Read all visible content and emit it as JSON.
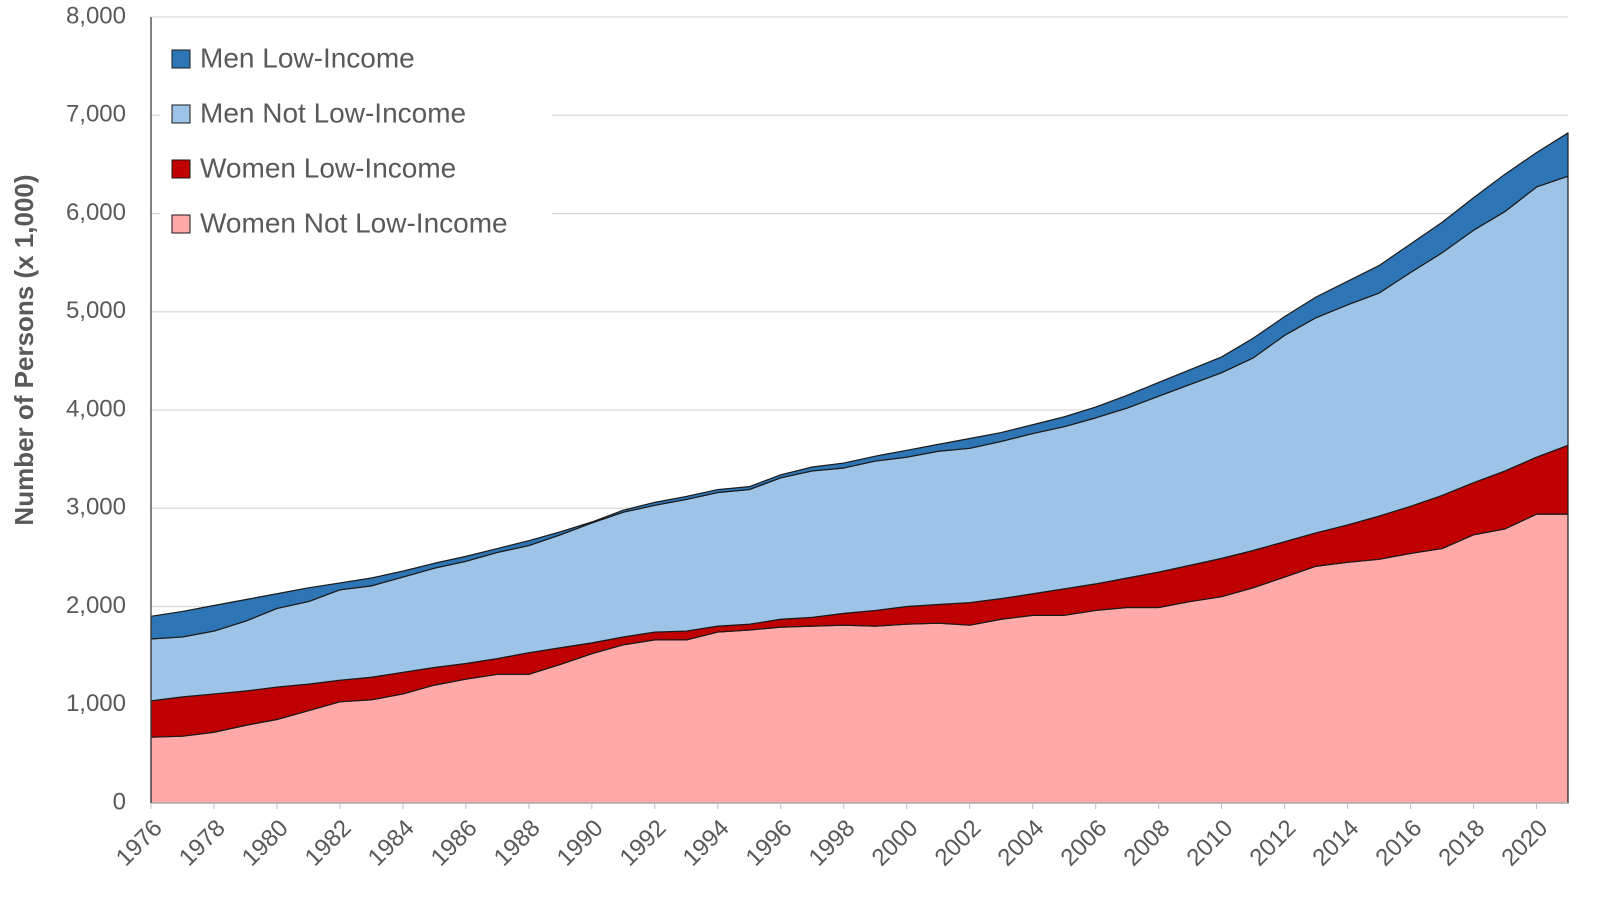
{
  "chart_data": {
    "type": "stacked_area",
    "y_label": "Number of Persons (x 1,000)",
    "x": [
      1976,
      1977,
      1978,
      1979,
      1980,
      1981,
      1982,
      1983,
      1984,
      1985,
      1986,
      1987,
      1988,
      1989,
      1990,
      1991,
      1992,
      1993,
      1994,
      1995,
      1996,
      1997,
      1998,
      1999,
      2000,
      2001,
      2002,
      2003,
      2004,
      2005,
      2006,
      2007,
      2008,
      2009,
      2010,
      2011,
      2012,
      2013,
      2014,
      2015,
      2016,
      2017,
      2018,
      2019,
      2020,
      2021
    ],
    "xlim": [
      1976,
      2021
    ],
    "xticks": [
      1976,
      1978,
      1980,
      1982,
      1984,
      1986,
      1988,
      1990,
      1992,
      1994,
      1996,
      1998,
      2000,
      2002,
      2004,
      2006,
      2008,
      2010,
      2012,
      2014,
      2016,
      2018,
      2020
    ],
    "ylim": [
      0,
      8000
    ],
    "yticks": [
      0,
      {
        "value": 1000,
        "label": "1,000"
      },
      {
        "value": 2000,
        "label": "2,000"
      },
      {
        "value": 3000,
        "label": "3,000"
      },
      {
        "value": 4000,
        "label": "4,000"
      },
      {
        "value": 5000,
        "label": "5,000"
      },
      {
        "value": 6000,
        "label": "6,000"
      },
      {
        "value": 7000,
        "label": "7,000"
      },
      {
        "value": 8000,
        "label": "8,000"
      }
    ],
    "grid": true,
    "legend": "upper left",
    "series": [
      {
        "name": "Men Low-Income",
        "color": "#2e75b6",
        "values": [
          230,
          260,
          260,
          220,
          150,
          140,
          70,
          80,
          60,
          50,
          50,
          40,
          50,
          30,
          10,
          20,
          30,
          30,
          30,
          30,
          30,
          40,
          50,
          50,
          70,
          70,
          100,
          90,
          90,
          100,
          110,
          130,
          140,
          150,
          160,
          200,
          190,
          210,
          240,
          280,
          290,
          310,
          330,
          380,
          350,
          440
        ]
      },
      {
        "name": "Men Not Low-Income",
        "color": "#9dc3e6",
        "values": [
          630,
          610,
          640,
          710,
          800,
          840,
          920,
          930,
          970,
          1010,
          1040,
          1080,
          1090,
          1150,
          1220,
          1270,
          1290,
          1340,
          1360,
          1370,
          1440,
          1490,
          1480,
          1520,
          1520,
          1560,
          1570,
          1600,
          1630,
          1650,
          1690,
          1730,
          1790,
          1840,
          1890,
          1960,
          2100,
          2190,
          2240,
          2270,
          2380,
          2470,
          2570,
          2640,
          2750,
          2740
        ]
      },
      {
        "name": "Women Low-Income",
        "color": "#c00000",
        "values": [
          370,
          400,
          390,
          350,
          330,
          270,
          220,
          230,
          220,
          180,
          160,
          160,
          220,
          170,
          110,
          80,
          80,
          90,
          60,
          60,
          80,
          90,
          120,
          160,
          180,
          190,
          230,
          210,
          220,
          270,
          270,
          300,
          360,
          370,
          390,
          380,
          360,
          340,
          380,
          440,
          480,
          540,
          530,
          590,
          580,
          700
        ]
      },
      {
        "name": "Women Not Low-Income",
        "color": "#ffa9a9",
        "values": [
          670,
          680,
          720,
          790,
          850,
          940,
          1030,
          1050,
          1110,
          1200,
          1260,
          1310,
          1310,
          1410,
          1520,
          1610,
          1660,
          1660,
          1740,
          1760,
          1790,
          1800,
          1810,
          1800,
          1820,
          1830,
          1810,
          1870,
          1910,
          1910,
          1960,
          1990,
          1990,
          2050,
          2100,
          2190,
          2300,
          2410,
          2450,
          2480,
          2540,
          2590,
          2730,
          2790,
          2940,
          2940
        ]
      }
    ]
  }
}
